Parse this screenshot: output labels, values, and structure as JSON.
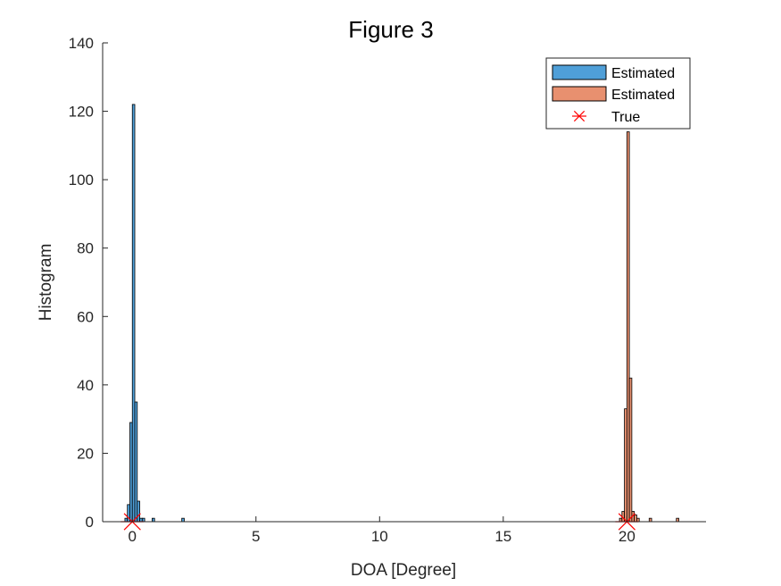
{
  "chart_data": {
    "type": "bar",
    "title": "Figure 3",
    "xlabel": "DOA [Degree]",
    "ylabel": "Histogram",
    "xlim": [
      -1.2,
      23.2
    ],
    "ylim": [
      0,
      140
    ],
    "xticks": [
      0,
      5,
      10,
      15,
      20
    ],
    "yticks": [
      0,
      20,
      40,
      60,
      80,
      100,
      120,
      140
    ],
    "bin_width": 0.1,
    "legend_position": "top-right",
    "grid": false,
    "series": [
      {
        "name": "Estimated",
        "kind": "histogram",
        "color": "#4f9fd8",
        "bins": [
          {
            "x": -0.25,
            "count": 1
          },
          {
            "x": -0.15,
            "count": 5
          },
          {
            "x": -0.05,
            "count": 29
          },
          {
            "x": 0.05,
            "count": 122
          },
          {
            "x": 0.15,
            "count": 35
          },
          {
            "x": 0.25,
            "count": 6
          },
          {
            "x": 0.35,
            "count": 1
          },
          {
            "x": 0.45,
            "count": 1
          },
          {
            "x": 0.85,
            "count": 1
          },
          {
            "x": 2.05,
            "count": 1
          }
        ]
      },
      {
        "name": "Estimated",
        "kind": "histogram",
        "color": "#e8906f",
        "bins": [
          {
            "x": 19.75,
            "count": 1
          },
          {
            "x": 19.85,
            "count": 3
          },
          {
            "x": 19.95,
            "count": 33
          },
          {
            "x": 20.05,
            "count": 114
          },
          {
            "x": 20.15,
            "count": 42
          },
          {
            "x": 20.25,
            "count": 3
          },
          {
            "x": 20.35,
            "count": 2
          },
          {
            "x": 20.45,
            "count": 1
          },
          {
            "x": 20.95,
            "count": 1
          },
          {
            "x": 22.05,
            "count": 1
          }
        ]
      },
      {
        "name": "True",
        "kind": "marker",
        "marker": "*",
        "color": "#ff0000",
        "points": [
          {
            "x": 0,
            "y": 0
          },
          {
            "x": 20,
            "y": 0
          }
        ]
      }
    ]
  }
}
